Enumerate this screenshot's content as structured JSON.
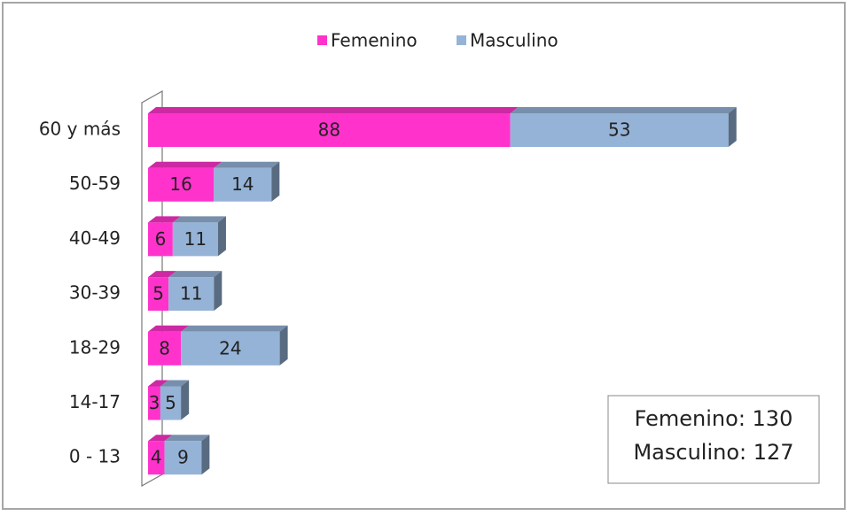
{
  "chart_data": {
    "type": "bar",
    "orientation": "horizontal",
    "stacked": true,
    "categories": [
      "60 y más",
      "50-59",
      "40-49",
      "30-39",
      "18-29",
      "14-17",
      "0 - 13"
    ],
    "series": [
      {
        "name": "Femenino",
        "color": "#ff33cc",
        "values": [
          88,
          16,
          6,
          5,
          8,
          3,
          4
        ]
      },
      {
        "name": "Masculino",
        "color": "#95b3d7",
        "values": [
          53,
          14,
          11,
          11,
          24,
          5,
          9
        ]
      }
    ],
    "xlim": [
      0,
      160
    ],
    "legend": "top",
    "annotations": [
      "Femenino: 130",
      "Masculino: 127"
    ]
  }
}
